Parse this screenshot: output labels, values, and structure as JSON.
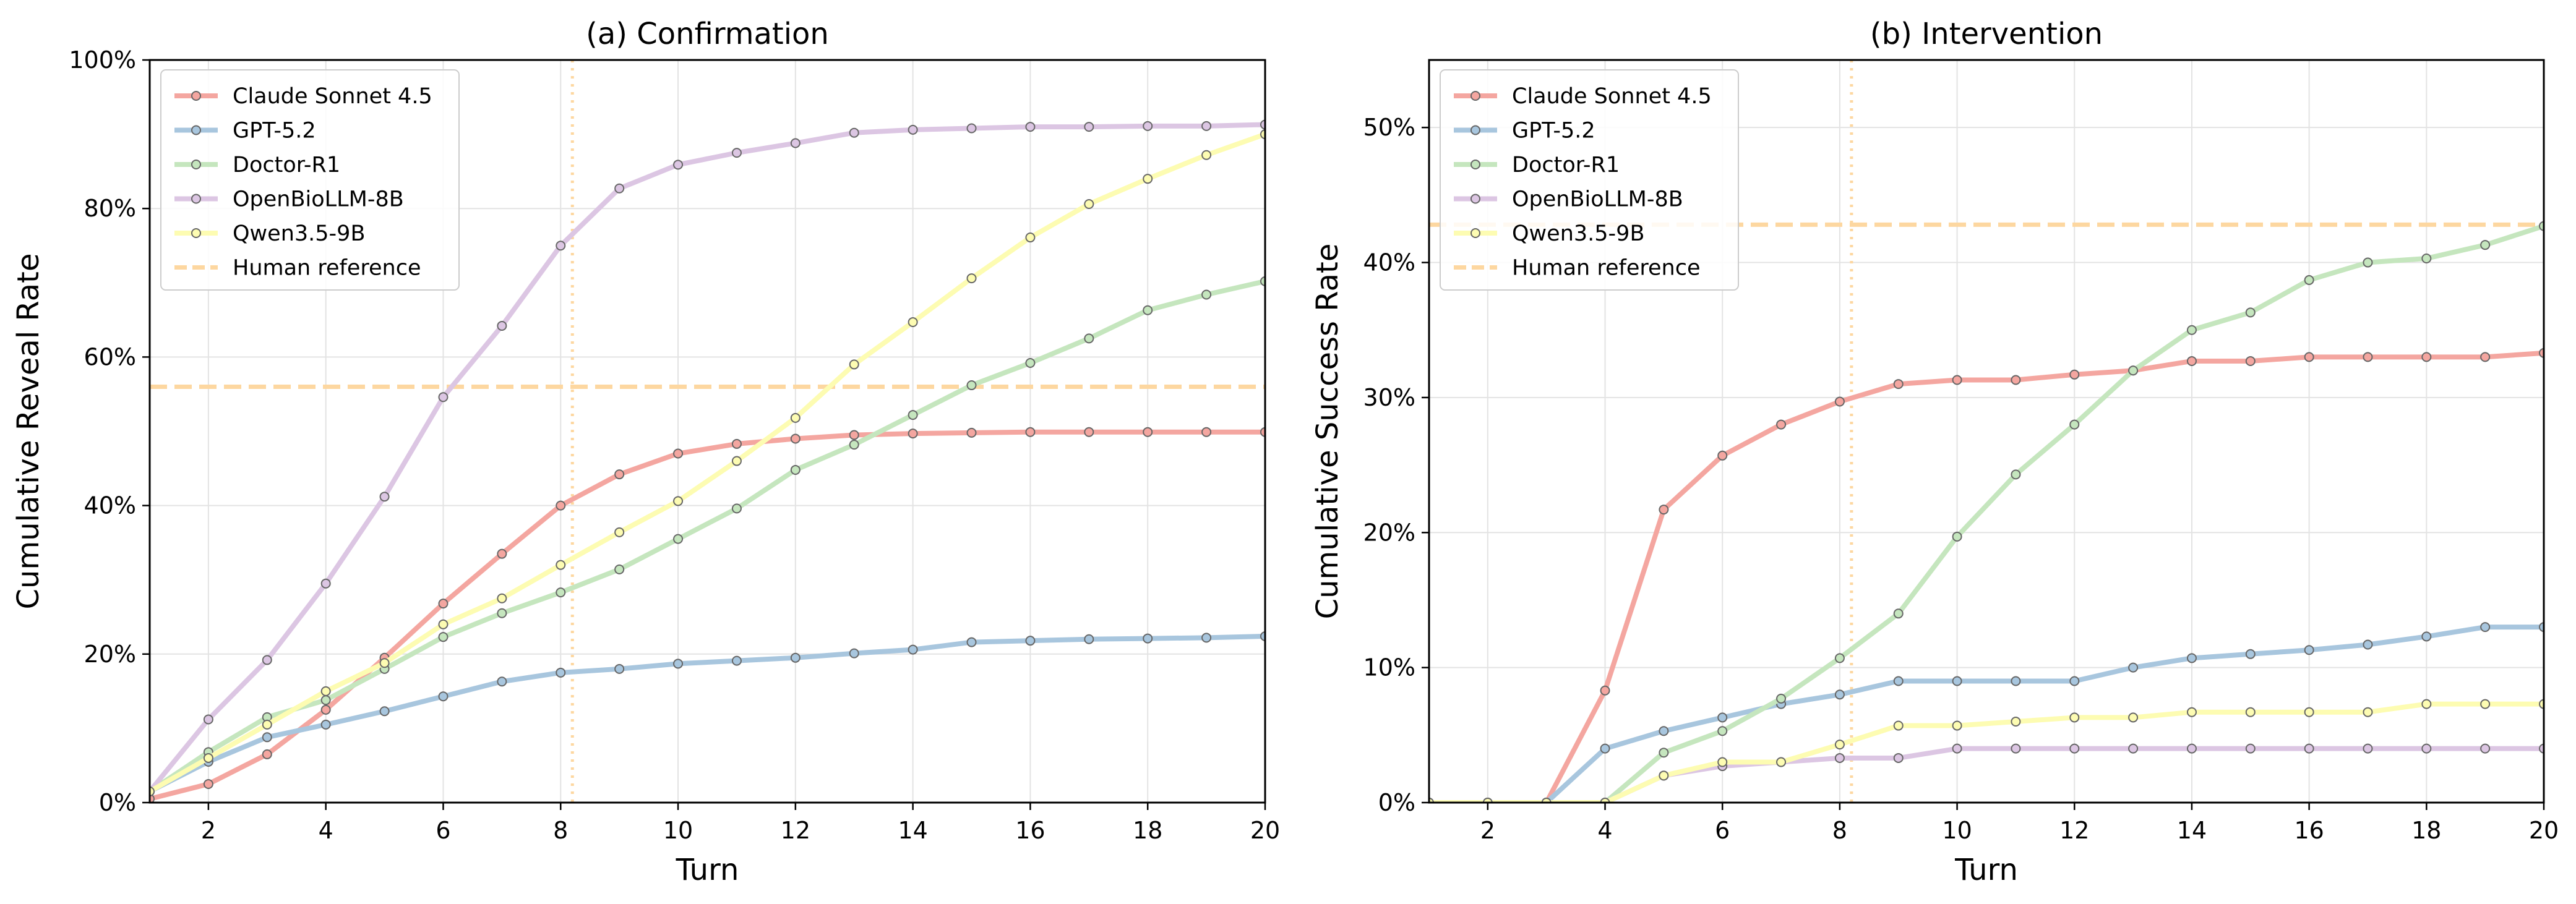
{
  "chart_data": [
    {
      "type": "line",
      "title": "(a) Confirmation",
      "xlabel": "Turn",
      "ylabel": "Cumulative Reveal Rate",
      "xlim": [
        1,
        20
      ],
      "ylim": [
        0,
        100
      ],
      "x": [
        1,
        2,
        3,
        4,
        5,
        6,
        7,
        8,
        9,
        10,
        11,
        12,
        13,
        14,
        15,
        16,
        17,
        18,
        19,
        20
      ],
      "xticks": [
        2,
        4,
        6,
        8,
        10,
        12,
        14,
        16,
        18,
        20
      ],
      "yticks": [
        0,
        20,
        40,
        60,
        80,
        100
      ],
      "ytick_labels": [
        "0%",
        "20%",
        "40%",
        "60%",
        "80%",
        "100%"
      ],
      "grid": true,
      "legend_position": "top-left",
      "human_reference": 56,
      "vertical_marker_x": 8.2,
      "series": [
        {
          "name": "Claude Sonnet 4.5",
          "color": "#f4a6a0",
          "values": [
            0.5,
            2.5,
            6.5,
            12.5,
            19.5,
            26.8,
            33.5,
            40,
            44.2,
            47,
            48.3,
            49,
            49.5,
            49.7,
            49.8,
            49.9,
            49.9,
            49.9,
            49.9,
            49.9
          ]
        },
        {
          "name": "GPT-5.2",
          "color": "#a8c6de",
          "values": [
            1.5,
            5.5,
            8.8,
            10.5,
            12.3,
            14.3,
            16.3,
            17.5,
            18,
            18.7,
            19.1,
            19.5,
            20.1,
            20.6,
            21.6,
            21.8,
            22,
            22.1,
            22.2,
            22.4
          ]
        },
        {
          "name": "Doctor-R1",
          "color": "#c5e6be",
          "values": [
            1.5,
            6.8,
            11.5,
            13.8,
            18,
            22.3,
            25.5,
            28.3,
            31.4,
            35.5,
            39.6,
            44.8,
            48.2,
            52.2,
            56.2,
            59.2,
            62.5,
            66.3,
            68.4,
            70.2
          ]
        },
        {
          "name": "OpenBioLLM-8B",
          "color": "#dcc6e3",
          "values": [
            1.5,
            11.2,
            19.2,
            29.5,
            41.2,
            54.6,
            64.2,
            75,
            82.7,
            85.9,
            87.5,
            88.8,
            90.2,
            90.6,
            90.8,
            91,
            91,
            91.1,
            91.1,
            91.3
          ]
        },
        {
          "name": "Qwen3.5-9B",
          "color": "#fdfcb2",
          "values": [
            1.5,
            6,
            10.5,
            15,
            18.8,
            24,
            27.5,
            32,
            36.4,
            40.6,
            46,
            51.8,
            59,
            64.7,
            70.6,
            76.1,
            80.6,
            84,
            87.2,
            90
          ]
        }
      ],
      "legend_human": "Human reference",
      "colors": {
        "human_reference": "#fdd7a0"
      }
    },
    {
      "type": "line",
      "title": "(b) Intervention",
      "xlabel": "Turn",
      "ylabel": "Cumulative Success Rate",
      "xlim": [
        1,
        20
      ],
      "ylim": [
        0,
        55
      ],
      "x": [
        1,
        2,
        3,
        4,
        5,
        6,
        7,
        8,
        9,
        10,
        11,
        12,
        13,
        14,
        15,
        16,
        17,
        18,
        19,
        20
      ],
      "xticks": [
        2,
        4,
        6,
        8,
        10,
        12,
        14,
        16,
        18,
        20
      ],
      "yticks": [
        0,
        10,
        20,
        30,
        40,
        50
      ],
      "ytick_labels": [
        "0%",
        "10%",
        "20%",
        "30%",
        "40%",
        "50%"
      ],
      "grid": true,
      "legend_position": "top-left",
      "human_reference": 42.8,
      "vertical_marker_x": 8.2,
      "series": [
        {
          "name": "Claude Sonnet 4.5",
          "color": "#f4a6a0",
          "values": [
            0,
            0,
            0,
            8.3,
            21.7,
            25.7,
            28,
            29.7,
            31,
            31.3,
            31.3,
            31.7,
            32,
            32.7,
            32.7,
            33,
            33,
            33,
            33,
            33.3
          ]
        },
        {
          "name": "GPT-5.2",
          "color": "#a8c6de",
          "values": [
            0,
            0,
            0,
            4,
            5.3,
            6.3,
            7.3,
            8,
            9,
            9,
            9,
            9,
            10,
            10.7,
            11,
            11.3,
            11.7,
            12.3,
            13,
            13
          ]
        },
        {
          "name": "Doctor-R1",
          "color": "#c5e6be",
          "values": [
            0,
            0,
            0,
            0,
            3.7,
            5.3,
            7.7,
            10.7,
            14,
            19.7,
            24.3,
            28,
            32,
            35,
            36.3,
            38.7,
            40,
            40.3,
            41.3,
            42.7
          ]
        },
        {
          "name": "OpenBioLLM-8B",
          "color": "#dcc6e3",
          "values": [
            0,
            0,
            0,
            0,
            2,
            2.7,
            3,
            3.3,
            3.3,
            4,
            4,
            4,
            4,
            4,
            4,
            4,
            4,
            4,
            4,
            4
          ]
        },
        {
          "name": "Qwen3.5-9B",
          "color": "#fdfcb2",
          "values": [
            0,
            0,
            0,
            0,
            2,
            3,
            3,
            4.3,
            5.7,
            5.7,
            6,
            6.3,
            6.3,
            6.7,
            6.7,
            6.7,
            6.7,
            7.3,
            7.3,
            7.3
          ]
        }
      ],
      "legend_human": "Human reference",
      "colors": {
        "human_reference": "#fdd7a0"
      }
    }
  ]
}
